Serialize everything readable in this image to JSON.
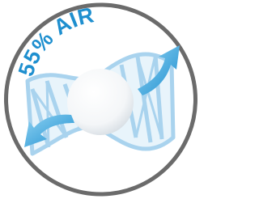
{
  "badge": {
    "label": "55% AIR"
  }
}
